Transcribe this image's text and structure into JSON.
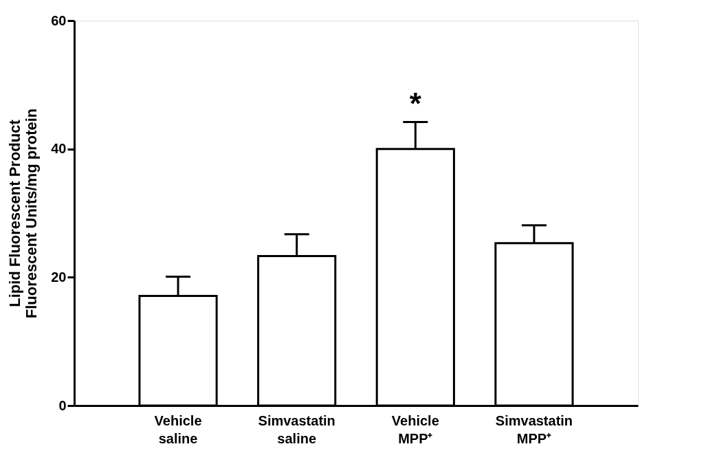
{
  "chart_data": {
    "type": "bar",
    "ylabel": "Lipid Fluorescent Product\nFluorescent Units/mg protein",
    "categories": [
      "Vehicle\nsaline",
      "Simvastatin\nsaline",
      "Vehicle\nMPP⁺",
      "Simvastatin\nMPP⁺"
    ],
    "values": [
      17.1,
      23.3,
      40,
      25.3
    ],
    "errors": [
      [
        17.1,
        20.1
      ],
      [
        23.3,
        26.7
      ],
      [
        40,
        44.2
      ],
      [
        25.3,
        28.1
      ]
    ],
    "color": "#ffffff",
    "ylim": [
      0,
      60
    ],
    "yticks": [
      0,
      20,
      40,
      60
    ],
    "grid": false,
    "annotations": [
      "*"
    ]
  }
}
